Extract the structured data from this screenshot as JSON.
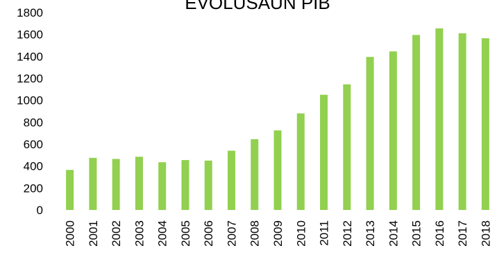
{
  "chart_data": {
    "type": "bar",
    "title": "EVOLUSAUN PIB",
    "categories": [
      "2000",
      "2001",
      "2002",
      "2003",
      "2004",
      "2005",
      "2006",
      "2007",
      "2008",
      "2009",
      "2010",
      "2011",
      "2012",
      "2013",
      "2014",
      "2015",
      "2016",
      "2017",
      "2018"
    ],
    "series": [
      {
        "values": [
          365,
          475,
          465,
          485,
          435,
          455,
          450,
          540,
          645,
          725,
          880,
          1050,
          1145,
          1395,
          1445,
          1595,
          1655,
          1610,
          1565
        ]
      }
    ],
    "ylim": [
      0,
      1800
    ],
    "yticks": [
      0,
      200,
      400,
      600,
      800,
      1000,
      1200,
      1400,
      1600,
      1800
    ],
    "bar_color": "#92D050",
    "grid": false,
    "legend": false
  }
}
